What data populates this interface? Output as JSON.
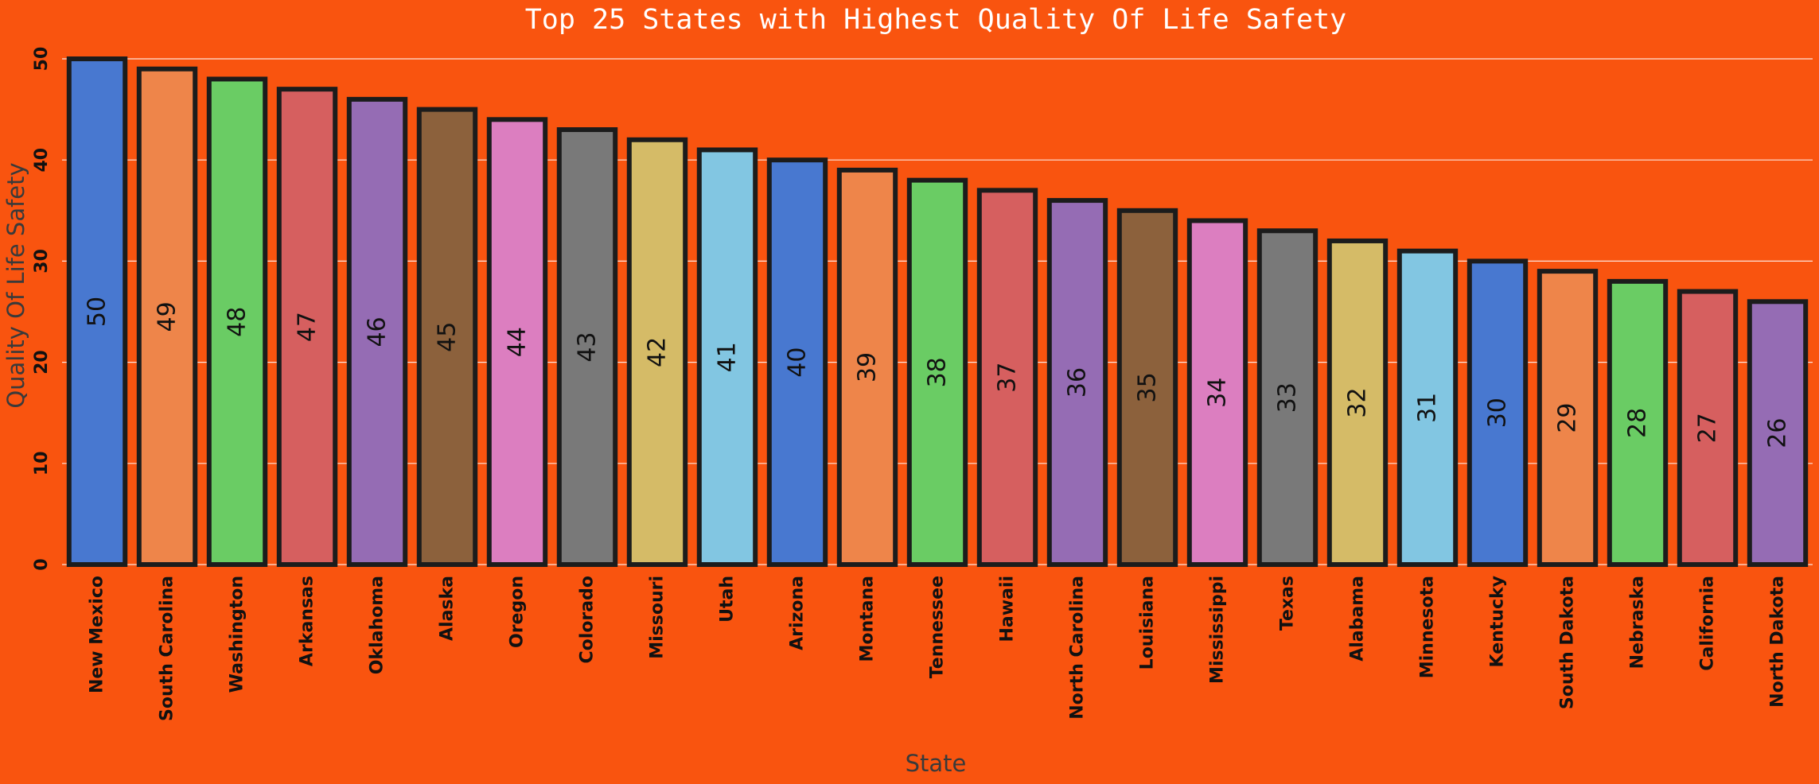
{
  "chart_data": {
    "type": "bar",
    "title": "Top 25 States with Highest Quality Of Life Safety",
    "xlabel": "State",
    "ylabel": "Quality Of Life Safety",
    "ylim": [
      0,
      50
    ],
    "yticks": [
      0,
      10,
      20,
      30,
      40,
      50
    ],
    "grid": "horizontal",
    "categories": [
      "New Mexico",
      "South Carolina",
      "Washington",
      "Arkansas",
      "Oklahoma",
      "Alaska",
      "Oregon",
      "Colorado",
      "Missouri",
      "Utah",
      "Arizona",
      "Montana",
      "Tennessee",
      "Hawaii",
      "North Carolina",
      "Louisiana",
      "Mississippi",
      "Texas",
      "Alabama",
      "Minnesota",
      "Kentucky",
      "South Dakota",
      "Nebraska",
      "California",
      "North Dakota"
    ],
    "values": [
      50,
      49,
      48,
      47,
      46,
      45,
      44,
      43,
      42,
      41,
      40,
      39,
      38,
      37,
      36,
      35,
      34,
      33,
      32,
      31,
      30,
      29,
      28,
      27,
      26
    ],
    "bar_colors": [
      "#4878d0",
      "#ee854a",
      "#6acc64",
      "#d65f5f",
      "#956cb4",
      "#8c613c",
      "#dc7ec0",
      "#797979",
      "#d5bb67",
      "#82c6e2"
    ],
    "background_color": "#f9540f"
  }
}
